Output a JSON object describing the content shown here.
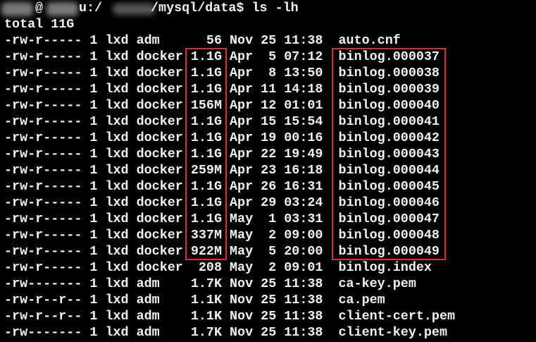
{
  "prompt": {
    "at": "@",
    "host_suffix": "u:/",
    "path": "/mysql/data$",
    "command": "ls -lh"
  },
  "total": "total 11G",
  "highlight_color": "#d0343a",
  "files": [
    {
      "perms": "-rw-r-----",
      "links": "1",
      "owner": "lxd",
      "group": "adm",
      "size": "56",
      "month": "Nov",
      "day": "25",
      "time": "11:38",
      "name": "auto.cnf"
    },
    {
      "perms": "-rw-r-----",
      "links": "1",
      "owner": "lxd",
      "group": "docker",
      "size": "1.1G",
      "month": "Apr",
      "day": "5",
      "time": "07:12",
      "name": "binlog.000037"
    },
    {
      "perms": "-rw-r-----",
      "links": "1",
      "owner": "lxd",
      "group": "docker",
      "size": "1.1G",
      "month": "Apr",
      "day": "8",
      "time": "13:50",
      "name": "binlog.000038"
    },
    {
      "perms": "-rw-r-----",
      "links": "1",
      "owner": "lxd",
      "group": "docker",
      "size": "1.1G",
      "month": "Apr",
      "day": "11",
      "time": "14:18",
      "name": "binlog.000039"
    },
    {
      "perms": "-rw-r-----",
      "links": "1",
      "owner": "lxd",
      "group": "docker",
      "size": "156M",
      "month": "Apr",
      "day": "12",
      "time": "01:01",
      "name": "binlog.000040"
    },
    {
      "perms": "-rw-r-----",
      "links": "1",
      "owner": "lxd",
      "group": "docker",
      "size": "1.1G",
      "month": "Apr",
      "day": "15",
      "time": "15:54",
      "name": "binlog.000041"
    },
    {
      "perms": "-rw-r-----",
      "links": "1",
      "owner": "lxd",
      "group": "docker",
      "size": "1.1G",
      "month": "Apr",
      "day": "19",
      "time": "00:16",
      "name": "binlog.000042"
    },
    {
      "perms": "-rw-r-----",
      "links": "1",
      "owner": "lxd",
      "group": "docker",
      "size": "1.1G",
      "month": "Apr",
      "day": "22",
      "time": "19:49",
      "name": "binlog.000043"
    },
    {
      "perms": "-rw-r-----",
      "links": "1",
      "owner": "lxd",
      "group": "docker",
      "size": "259M",
      "month": "Apr",
      "day": "23",
      "time": "16:18",
      "name": "binlog.000044"
    },
    {
      "perms": "-rw-r-----",
      "links": "1",
      "owner": "lxd",
      "group": "docker",
      "size": "1.1G",
      "month": "Apr",
      "day": "26",
      "time": "16:31",
      "name": "binlog.000045"
    },
    {
      "perms": "-rw-r-----",
      "links": "1",
      "owner": "lxd",
      "group": "docker",
      "size": "1.1G",
      "month": "Apr",
      "day": "29",
      "time": "03:24",
      "name": "binlog.000046"
    },
    {
      "perms": "-rw-r-----",
      "links": "1",
      "owner": "lxd",
      "group": "docker",
      "size": "1.1G",
      "month": "May",
      "day": "1",
      "time": "03:31",
      "name": "binlog.000047"
    },
    {
      "perms": "-rw-r-----",
      "links": "1",
      "owner": "lxd",
      "group": "docker",
      "size": "337M",
      "month": "May",
      "day": "2",
      "time": "09:00",
      "name": "binlog.000048"
    },
    {
      "perms": "-rw-r-----",
      "links": "1",
      "owner": "lxd",
      "group": "docker",
      "size": "922M",
      "month": "May",
      "day": "5",
      "time": "20:00",
      "name": "binlog.000049"
    },
    {
      "perms": "-rw-r-----",
      "links": "1",
      "owner": "lxd",
      "group": "docker",
      "size": "208",
      "month": "May",
      "day": "2",
      "time": "09:01",
      "name": "binlog.index"
    },
    {
      "perms": "-rw-------",
      "links": "1",
      "owner": "lxd",
      "group": "adm",
      "size": "1.7K",
      "month": "Nov",
      "day": "25",
      "time": "11:38",
      "name": "ca-key.pem"
    },
    {
      "perms": "-rw-r--r--",
      "links": "1",
      "owner": "lxd",
      "group": "adm",
      "size": "1.1K",
      "month": "Nov",
      "day": "25",
      "time": "11:38",
      "name": "ca.pem"
    },
    {
      "perms": "-rw-r--r--",
      "links": "1",
      "owner": "lxd",
      "group": "adm",
      "size": "1.1K",
      "month": "Nov",
      "day": "25",
      "time": "11:38",
      "name": "client-cert.pem"
    },
    {
      "perms": "-rw-------",
      "links": "1",
      "owner": "lxd",
      "group": "adm",
      "size": "1.7K",
      "month": "Nov",
      "day": "25",
      "time": "11:38",
      "name": "client-key.pem"
    }
  ]
}
